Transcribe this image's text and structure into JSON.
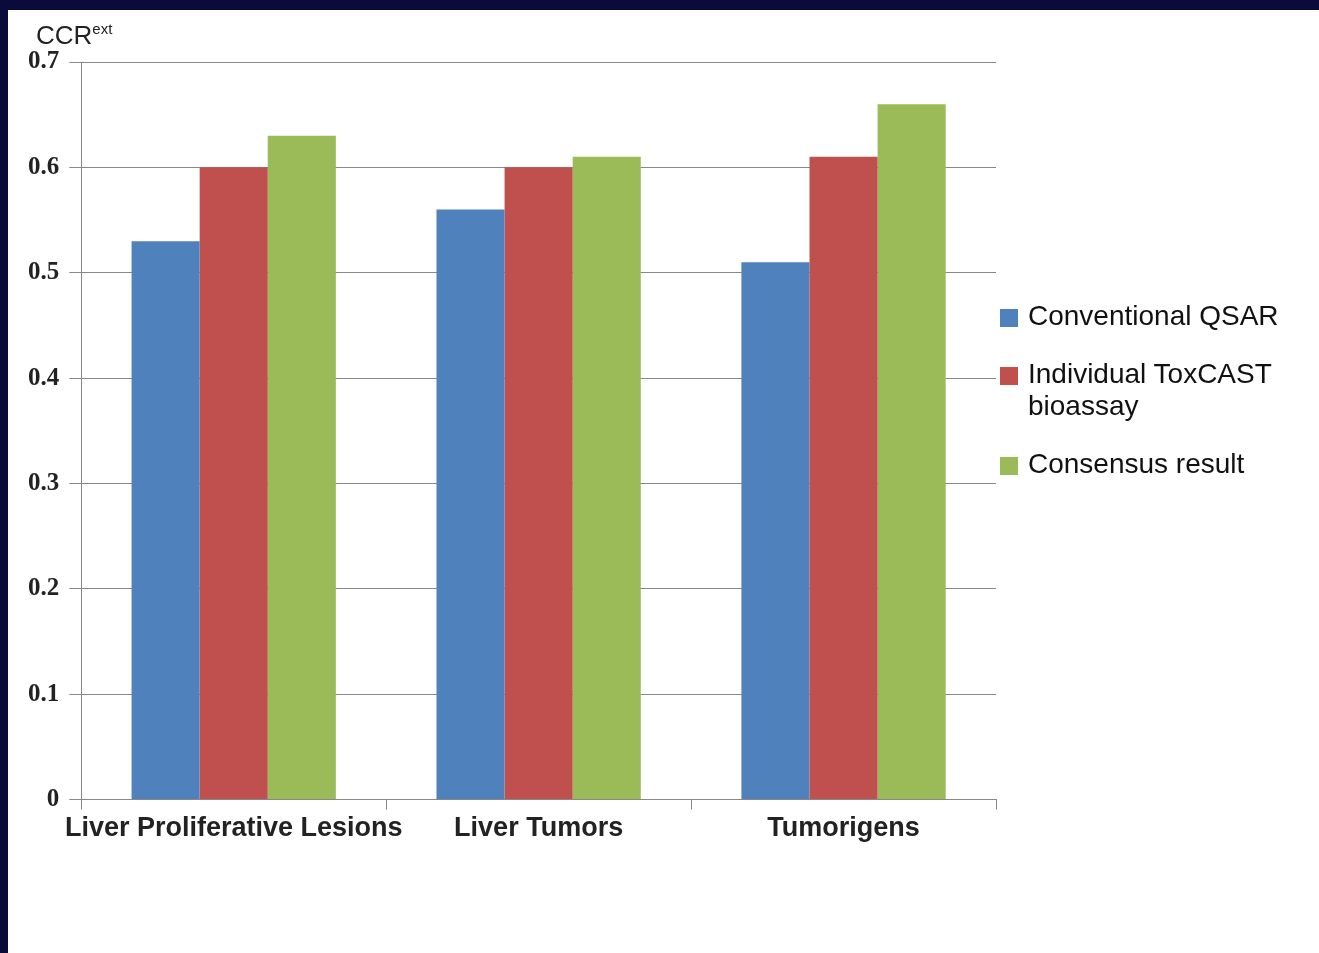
{
  "chart_data": {
    "type": "bar",
    "ylabel": "CCR$^{ext}$",
    "categories": [
      "Liver Proliferative Lesions",
      "Liver Tumors",
      "Tumorigens"
    ],
    "series": [
      {
        "name": "Conventional QSAR",
        "color": "#4f81bd",
        "values": [
          0.53,
          0.56,
          0.51
        ]
      },
      {
        "name": "Individual ToxCAST bioassay",
        "color": "#c0504d",
        "values": [
          0.6,
          0.6,
          0.61
        ]
      },
      {
        "name": "Consensus result",
        "color": "#9bbb59",
        "values": [
          0.63,
          0.61,
          0.66
        ]
      }
    ],
    "ylim": [
      0,
      0.7
    ],
    "yticks": [
      0,
      0.1,
      0.2,
      0.3,
      0.4,
      0.5,
      0.6,
      0.7
    ],
    "grid": "y",
    "legend": "right"
  }
}
